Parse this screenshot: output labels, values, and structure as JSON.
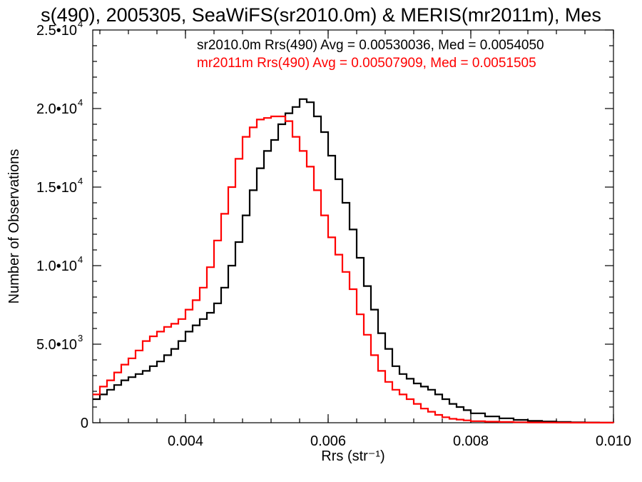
{
  "chart_data": {
    "type": "line",
    "title": "s(490), 2005305, SeaWiFS(sr2010.0m) & MERIS(mr2011m), Mes",
    "xlabel": "Rrs (str⁻¹)",
    "ylabel": "Number of Observations",
    "xlim": [
      0.0027,
      0.01
    ],
    "ylim": [
      0,
      25000
    ],
    "x_ticks": [
      0.004,
      0.006,
      0.008,
      0.01
    ],
    "x_tick_labels": [
      "0.004",
      "0.006",
      "0.008",
      "0.010"
    ],
    "y_ticks": [
      0,
      5000,
      10000,
      15000,
      20000,
      25000
    ],
    "y_tick_labels": [
      {
        "mant": "0",
        "exp": ""
      },
      {
        "mant": "5.0•10",
        "exp": "3"
      },
      {
        "mant": "1.0•10",
        "exp": "4"
      },
      {
        "mant": "1.5•10",
        "exp": "4"
      },
      {
        "mant": "2.0•10",
        "exp": "4"
      },
      {
        "mant": "2.5•10",
        "exp": "4"
      }
    ],
    "grid": false,
    "legend_position": "top-right",
    "step_style": "histogram",
    "series": [
      {
        "name": "sr2010.0m Rrs(490) Avg = 0.00530036, Med = 0.0054050",
        "color": "#000000",
        "x": [
          0.0027,
          0.0028,
          0.0029,
          0.003,
          0.0031,
          0.0032,
          0.0033,
          0.0034,
          0.0035,
          0.0036,
          0.0037,
          0.0038,
          0.0039,
          0.004,
          0.0041,
          0.0042,
          0.0043,
          0.0044,
          0.0045,
          0.0046,
          0.0047,
          0.0048,
          0.0049,
          0.005,
          0.0051,
          0.0052,
          0.0053,
          0.0054,
          0.0055,
          0.0056,
          0.0057,
          0.0058,
          0.0059,
          0.006,
          0.0061,
          0.0062,
          0.0063,
          0.0064,
          0.0065,
          0.0066,
          0.0067,
          0.0068,
          0.0069,
          0.007,
          0.0071,
          0.0072,
          0.0073,
          0.0074,
          0.0075,
          0.0076,
          0.0077,
          0.0078,
          0.0079,
          0.008,
          0.0082,
          0.0084,
          0.0086,
          0.0088,
          0.009,
          0.0092,
          0.0094,
          0.0096,
          0.0098,
          0.01
        ],
        "y": [
          1500,
          1800,
          2100,
          2400,
          2700,
          2900,
          3100,
          3300,
          3600,
          3900,
          4300,
          4700,
          5200,
          5800,
          6200,
          6600,
          7000,
          7600,
          8600,
          10000,
          11500,
          13200,
          14800,
          16200,
          17300,
          18000,
          19000,
          19700,
          20100,
          20600,
          20400,
          19500,
          18500,
          17000,
          15500,
          14000,
          12300,
          10500,
          8700,
          7200,
          5700,
          4700,
          3600,
          3100,
          2800,
          2500,
          2300,
          2100,
          1800,
          1500,
          1200,
          1000,
          800,
          600,
          400,
          280,
          180,
          120,
          80,
          50,
          30,
          20,
          10,
          5
        ]
      },
      {
        "name": "mr2011m Rrs(490) Avg = 0.00507909, Med = 0.0051505",
        "color": "#ff0000",
        "x": [
          0.0027,
          0.0028,
          0.0029,
          0.003,
          0.0031,
          0.0032,
          0.0033,
          0.0034,
          0.0035,
          0.0036,
          0.0037,
          0.0038,
          0.0039,
          0.004,
          0.0041,
          0.0042,
          0.0043,
          0.0044,
          0.0045,
          0.0046,
          0.0047,
          0.0048,
          0.0049,
          0.005,
          0.0051,
          0.0052,
          0.0053,
          0.0054,
          0.0055,
          0.0056,
          0.0057,
          0.0058,
          0.0059,
          0.006,
          0.0061,
          0.0062,
          0.0063,
          0.0064,
          0.0065,
          0.0066,
          0.0067,
          0.0068,
          0.0069,
          0.007,
          0.0071,
          0.0072,
          0.0073,
          0.0074,
          0.0075,
          0.0076,
          0.0077,
          0.0078,
          0.0079,
          0.008,
          0.0082,
          0.0084,
          0.0086,
          0.0088,
          0.009,
          0.0092,
          0.0094,
          0.0096,
          0.0098,
          0.01
        ],
        "y": [
          1800,
          2300,
          2700,
          3200,
          3700,
          4100,
          4600,
          5200,
          5500,
          5800,
          6100,
          6300,
          6600,
          7200,
          7800,
          8600,
          9900,
          11600,
          13300,
          15000,
          16800,
          18200,
          18800,
          19300,
          19400,
          19500,
          19500,
          19200,
          18200,
          17300,
          16300,
          14800,
          13200,
          11800,
          10700,
          9600,
          8500,
          6900,
          5600,
          4300,
          3300,
          2600,
          2100,
          1800,
          1500,
          1200,
          900,
          700,
          500,
          350,
          250,
          200,
          150,
          100,
          70,
          50,
          30,
          20,
          15,
          10,
          5,
          5,
          3,
          2
        ]
      }
    ]
  }
}
